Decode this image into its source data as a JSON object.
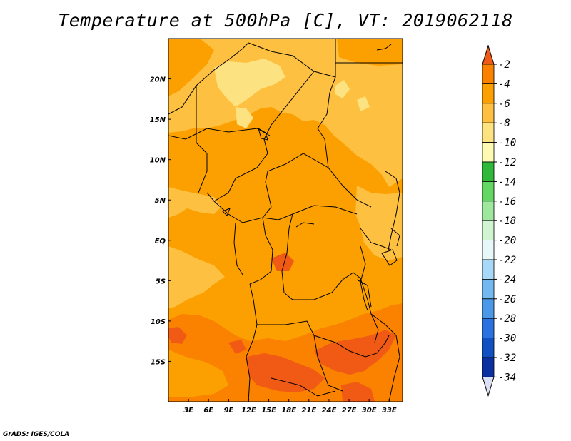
{
  "title": "Temperature at 500hPa [C], VT: 2019062118",
  "credit": "GrADS: IGES/COLA",
  "colors": {
    "band_-2_plus": "#f05a14",
    "band_-4_-2": "#fa8200",
    "band_-6_-4": "#fba000",
    "band_-8_-6": "#fdc040",
    "band_-10_-8": "#fde282",
    "coast_border": "#000000"
  },
  "chart_data": {
    "type": "heatmap",
    "title": "Temperature at 500hPa [C], VT: 2019062118",
    "x_ticks": [
      "3E",
      "6E",
      "9E",
      "12E",
      "15E",
      "18E",
      "21E",
      "24E",
      "27E",
      "30E",
      "33E"
    ],
    "x_tick_values": [
      3,
      6,
      9,
      12,
      15,
      18,
      21,
      24,
      27,
      30,
      33
    ],
    "y_ticks": [
      "20N",
      "15N",
      "10N",
      "5N",
      "EQ",
      "5S",
      "10S",
      "15S"
    ],
    "y_tick_values": [
      20,
      15,
      10,
      5,
      0,
      -5,
      -10,
      -15
    ],
    "xlim": [
      0,
      35
    ],
    "ylim": [
      -20,
      25
    ],
    "colorbar": {
      "labels": [
        "-2",
        "-4",
        "-6",
        "-8",
        "-10",
        "-12",
        "-14",
        "-16",
        "-18",
        "-20",
        "-22",
        "-24",
        "-26",
        "-28",
        "-30",
        "-32",
        "-34"
      ],
      "colors": [
        "#f05a14",
        "#fa8200",
        "#fba000",
        "#fdc040",
        "#fde282",
        "#fefab4",
        "#2fb83a",
        "#64d664",
        "#9ee89e",
        "#d0f5d0",
        "#e8f8f8",
        "#a8d8f8",
        "#74b8f0",
        "#4c98e8",
        "#2a72e0",
        "#1050c0",
        "#0a30a0",
        "#06208a"
      ],
      "over_color": "#f05a14",
      "under_color": "#dce0f4"
    }
  }
}
